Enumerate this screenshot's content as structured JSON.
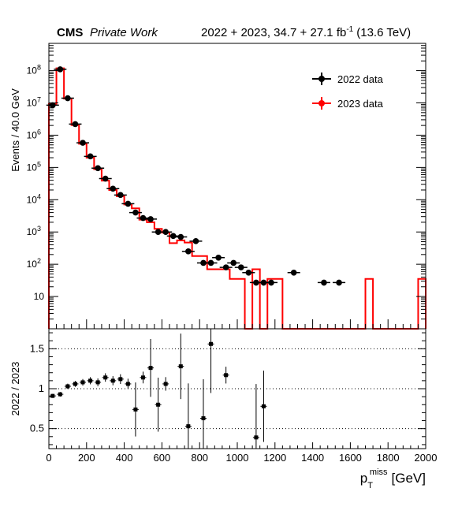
{
  "header": {
    "cms": "CMS",
    "private": "Private Work",
    "lumi_prefix": "2022 + 2023, 34.7 + 27.1 fb",
    "lumi_sup": "-1",
    "lumi_suffix": "(13.6 TeV)"
  },
  "chart_data": [
    {
      "type": "scatter",
      "ylabel": "Events / 40.0 GeV",
      "log_y": true,
      "xlim": [
        0,
        2000
      ],
      "ylim": [
        1,
        700000000
      ],
      "y_tick_labels": [
        {
          "value": 10,
          "label": "10"
        },
        {
          "value": 100,
          "label": "10",
          "sup": "2"
        },
        {
          "value": 1000,
          "label": "10",
          "sup": "3"
        },
        {
          "value": 10000,
          "label": "10",
          "sup": "4"
        },
        {
          "value": 100000,
          "label": "10",
          "sup": "5"
        },
        {
          "value": 1000000,
          "label": "10",
          "sup": "6"
        },
        {
          "value": 10000000,
          "label": "10",
          "sup": "7"
        },
        {
          "value": 100000000,
          "label": "10",
          "sup": "8"
        }
      ],
      "legend": {
        "placement": "top-right",
        "entries": [
          {
            "label": "2022 data",
            "color": "#000000"
          },
          {
            "label": "2023 data",
            "color": "#ff0000"
          }
        ]
      },
      "series": [
        {
          "name": "2022 data",
          "color": "#000000",
          "points": [
            [
              20,
              8500000
            ],
            [
              60,
              110000000
            ],
            [
              100,
              14000000
            ],
            [
              140,
              2200000
            ],
            [
              180,
              580000
            ],
            [
              220,
              220000
            ],
            [
              260,
              95000
            ],
            [
              300,
              45000
            ],
            [
              340,
              22000
            ],
            [
              380,
              14000
            ],
            [
              420,
              7500
            ],
            [
              460,
              4000
            ],
            [
              500,
              2700
            ],
            [
              540,
              2500
            ],
            [
              580,
              1000
            ],
            [
              620,
              1000
            ],
            [
              660,
              750
            ],
            [
              700,
              700
            ],
            [
              740,
              250
            ],
            [
              780,
              520
            ],
            [
              820,
              110
            ],
            [
              860,
              110
            ],
            [
              900,
              160
            ],
            [
              940,
              80
            ],
            [
              980,
              110
            ],
            [
              1020,
              80
            ],
            [
              1060,
              55
            ],
            [
              1100,
              27
            ],
            [
              1140,
              27
            ],
            [
              1180,
              27
            ],
            [
              1300,
              55
            ],
            [
              1460,
              27
            ],
            [
              1540,
              27
            ]
          ]
        },
        {
          "name": "2023 data",
          "color": "#ff0000",
          "bins": [
            [
              0,
              40,
              9300000
            ],
            [
              40,
              80,
              118000000
            ],
            [
              80,
              120,
              13500000
            ],
            [
              120,
              160,
              2050000
            ],
            [
              160,
              200,
              540000
            ],
            [
              200,
              240,
              200000
            ],
            [
              240,
              280,
              88000
            ],
            [
              280,
              320,
              39000
            ],
            [
              320,
              360,
              20000
            ],
            [
              360,
              400,
              12700
            ],
            [
              400,
              440,
              7100
            ],
            [
              440,
              480,
              5400
            ],
            [
              480,
              520,
              2400
            ],
            [
              520,
              560,
              2000
            ],
            [
              560,
              600,
              1250
            ],
            [
              600,
              640,
              950
            ],
            [
              640,
              680,
              450
            ],
            [
              680,
              720,
              550
            ],
            [
              720,
              760,
              470
            ],
            [
              760,
              800,
              180
            ],
            [
              800,
              840,
              180
            ],
            [
              840,
              880,
              70
            ],
            [
              880,
              920,
              70
            ],
            [
              920,
              960,
              70
            ],
            [
              960,
              1000,
              35
            ],
            [
              1000,
              1040,
              35
            ],
            [
              1040,
              1080,
              1
            ],
            [
              1080,
              1120,
              70
            ],
            [
              1120,
              1160,
              1
            ],
            [
              1160,
              1200,
              35
            ],
            [
              1200,
              1240,
              35
            ],
            [
              1240,
              1680,
              1
            ],
            [
              1680,
              1720,
              35
            ],
            [
              1720,
              1960,
              1
            ],
            [
              1960,
              2000,
              35
            ]
          ]
        }
      ]
    },
    {
      "type": "scatter",
      "ylabel": "2022 / 2023",
      "xlabel_main": "p",
      "xlabel_sub": "T",
      "xlabel_sup": "miss",
      "xlabel_unit": "[GeV]",
      "xlim": [
        0,
        2000
      ],
      "ylim": [
        0.25,
        1.75
      ],
      "x_ticks": [
        0,
        200,
        400,
        600,
        800,
        1000,
        1200,
        1400,
        1600,
        1800,
        2000
      ],
      "y_ticks": [
        0.5,
        1,
        1.5
      ],
      "grid": "dotted horizontal at 0.5, 1, 1.5",
      "points": [
        [
          20,
          0.91
        ],
        [
          60,
          0.93
        ],
        [
          100,
          1.03
        ],
        [
          140,
          1.06
        ],
        [
          180,
          1.08
        ],
        [
          220,
          1.1
        ],
        [
          260,
          1.08
        ],
        [
          300,
          1.14
        ],
        [
          340,
          1.1
        ],
        [
          380,
          1.12
        ],
        [
          420,
          1.06
        ],
        [
          460,
          0.74
        ],
        [
          500,
          1.14
        ],
        [
          540,
          1.26
        ],
        [
          580,
          0.8
        ],
        [
          620,
          1.06
        ],
        [
          700,
          1.28
        ],
        [
          740,
          0.53
        ],
        [
          820,
          0.63
        ],
        [
          860,
          1.56
        ],
        [
          940,
          1.17
        ],
        [
          1100,
          0.39
        ],
        [
          1140,
          0.78
        ]
      ]
    }
  ]
}
